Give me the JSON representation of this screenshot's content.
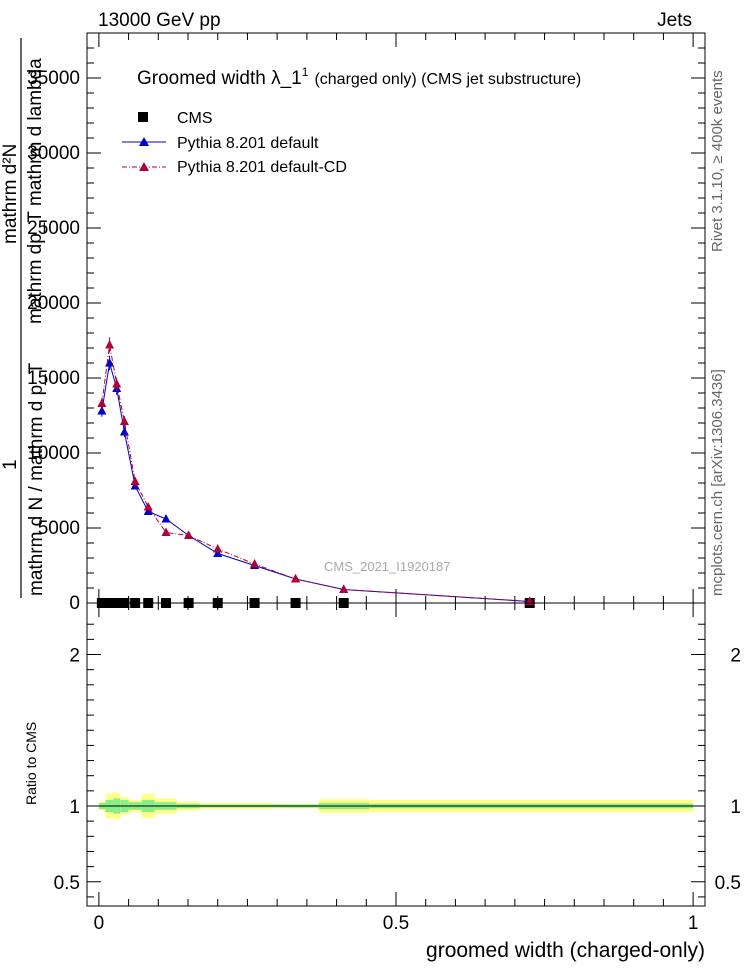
{
  "header": {
    "left": "13000 GeV pp",
    "right": "Jets"
  },
  "side_labels": {
    "rivet": "Rivet 3.1.10, ≥ 400k events",
    "mcplots": "mcplots.cern.ch [arXiv:1306.3436]"
  },
  "chart_data": [
    {
      "type": "line",
      "title": "Groomed width  λ_1",
      "title_sup": "1",
      "title_suffix": "(charged only) (CMS jet substructure)",
      "watermark": "CMS_2021_I1920187",
      "ylabel_numerator": "mathrm d²N",
      "ylabel_numerator2": "mathrm dp_T mathrm d lambda",
      "ylabel_denominator_one": "1",
      "ylabel_denominator": "mathrm d N / mathrm d p_T",
      "ylim": [
        0,
        38000
      ],
      "xlim": [
        -0.02,
        1.02
      ],
      "y_ticks": [
        {
          "v": 0,
          "label": "0"
        },
        {
          "v": 5000,
          "label": "5000"
        },
        {
          "v": 10000,
          "label": "10000"
        },
        {
          "v": 15000,
          "label": "15000"
        },
        {
          "v": 20000,
          "label": "20000"
        },
        {
          "v": 25000,
          "label": "25000"
        },
        {
          "v": 30000,
          "label": "30000"
        },
        {
          "v": 35000,
          "label": "35000"
        }
      ],
      "legend": {
        "placement": "top-left",
        "entries": [
          {
            "label": "CMS",
            "color": "#000000",
            "marker": "square"
          },
          {
            "label": "Pythia 8.201 default",
            "color": "#0000cc",
            "marker": "triangle",
            "line": "solid"
          },
          {
            "label": "Pythia 8.201 default-CD",
            "color": "#b0003a",
            "marker": "triangle",
            "line": "dashdot"
          }
        ]
      },
      "x": [
        0.005,
        0.018,
        0.03,
        0.043,
        0.061,
        0.083,
        0.113,
        0.151,
        0.2,
        0.262,
        0.331,
        0.412,
        0.725
      ],
      "cms_values": [
        0,
        0,
        0,
        0,
        0,
        0,
        0,
        0,
        0,
        0,
        0,
        0,
        0
      ],
      "series": [
        {
          "name": "Pythia 8.201 default",
          "color": "#0000cc",
          "values": [
            12800,
            16000,
            14300,
            11400,
            7800,
            6100,
            5600,
            4500,
            3300,
            2500,
            1600,
            900,
            100
          ]
        },
        {
          "name": "Pythia 8.201 default-CD",
          "color": "#b0003a",
          "values": [
            13300,
            17200,
            14600,
            12100,
            8100,
            6400,
            4700,
            4500,
            3600,
            2600,
            1600,
            900,
            100
          ]
        }
      ]
    },
    {
      "type": "area",
      "ylabel": "Ratio to CMS",
      "xlabel": "groomed width (charged-only)",
      "ylim": [
        0.34,
        2.34
      ],
      "y_ticks": [
        {
          "v": 0.5,
          "label": "0.5"
        },
        {
          "v": 1,
          "label": "1"
        },
        {
          "v": 2,
          "label": "2"
        }
      ],
      "x_ticks": [
        {
          "v": 0,
          "label": "0"
        },
        {
          "v": 0.5,
          "label": "0.5"
        },
        {
          "v": 1,
          "label": "1"
        }
      ],
      "band_edges": [
        0,
        0.011,
        0.024,
        0.036,
        0.05,
        0.072,
        0.094,
        0.131,
        0.17,
        0.231,
        0.292,
        0.37,
        0.455,
        1.0
      ],
      "stat_band": [
        0.02,
        0.04,
        0.05,
        0.04,
        0.025,
        0.04,
        0.025,
        0.015,
        0.01,
        0.01,
        0.01,
        0.02,
        0.015
      ],
      "total_band": [
        0.03,
        0.08,
        0.09,
        0.06,
        0.04,
        0.08,
        0.05,
        0.03,
        0.02,
        0.02,
        0.015,
        0.045,
        0.04
      ]
    }
  ]
}
